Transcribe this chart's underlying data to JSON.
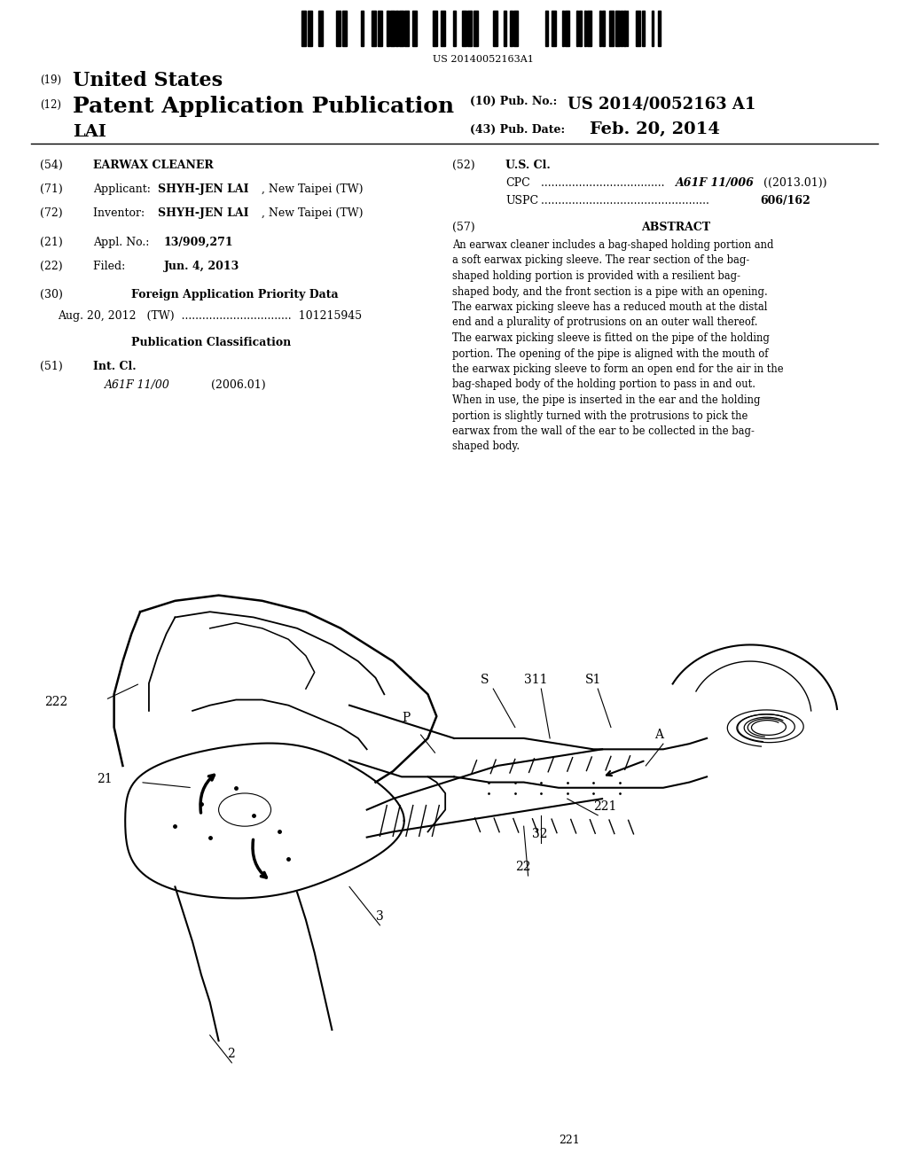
{
  "background_color": "#ffffff",
  "barcode_text": "US 20140052163A1",
  "header_19": "(19)",
  "header_19_text": "United States",
  "header_12": "(12)",
  "header_12_text": "Patent Application Publication",
  "header_pub_no_label": "(10) Pub. No.:",
  "header_pub_no": "US 2014/0052163 A1",
  "header_lai": "LAI",
  "header_pub_date_label": "(43) Pub. Date:",
  "header_pub_date": "Feb. 20, 2014",
  "field_54_label": "(54)",
  "field_54_text": "EARWAX CLEANER",
  "field_71_label": "(71)",
  "field_71_bold": "SHYH-JEN LAI",
  "field_71_post": ", New Taipei (TW)",
  "field_72_label": "(72)",
  "field_72_bold": "SHYH-JEN LAI",
  "field_72_post": ", New Taipei (TW)",
  "field_21_label": "(21)",
  "field_21_bold": "13/909,271",
  "field_22_label": "(22)",
  "field_22_bold": "Jun. 4, 2013",
  "field_30_label": "(30)",
  "field_30_text": "Foreign Application Priority Data",
  "field_30_data": "Aug. 20, 2012   (TW)  ................................  101215945",
  "pub_class_label": "Publication Classification",
  "field_51_label": "(51)",
  "field_51_text": "Int. Cl.",
  "field_51_sub1": "A61F 11/00",
  "field_51_sub1_date": "(2006.01)",
  "field_52_label": "(52)",
  "field_52_text": "U.S. Cl.",
  "field_52_cpc_class": "A61F 11/006",
  "field_52_cpc_date": "(2013.01)",
  "field_52_uspc_class": "606/162",
  "field_57_label": "(57)",
  "field_57_title": "ABSTRACT",
  "abstract_lines": [
    "An earwax cleaner includes a bag-shaped holding portion and",
    "a soft earwax picking sleeve. The rear section of the bag-",
    "shaped holding portion is provided with a resilient bag-",
    "shaped body, and the front section is a pipe with an opening.",
    "The earwax picking sleeve has a reduced mouth at the distal",
    "end and a plurality of protrusions on an outer wall thereof.",
    "The earwax picking sleeve is fitted on the pipe of the holding",
    "portion. The opening of the pipe is aligned with the mouth of",
    "the earwax picking sleeve to form an open end for the air in the",
    "bag-shaped body of the holding portion to pass in and out.",
    "When in use, the pipe is inserted in the ear and the holding",
    "portion is slightly turned with the protrusions to pick the",
    "earwax from the wall of the ear to be collected in the bag-",
    "shaped body."
  ]
}
